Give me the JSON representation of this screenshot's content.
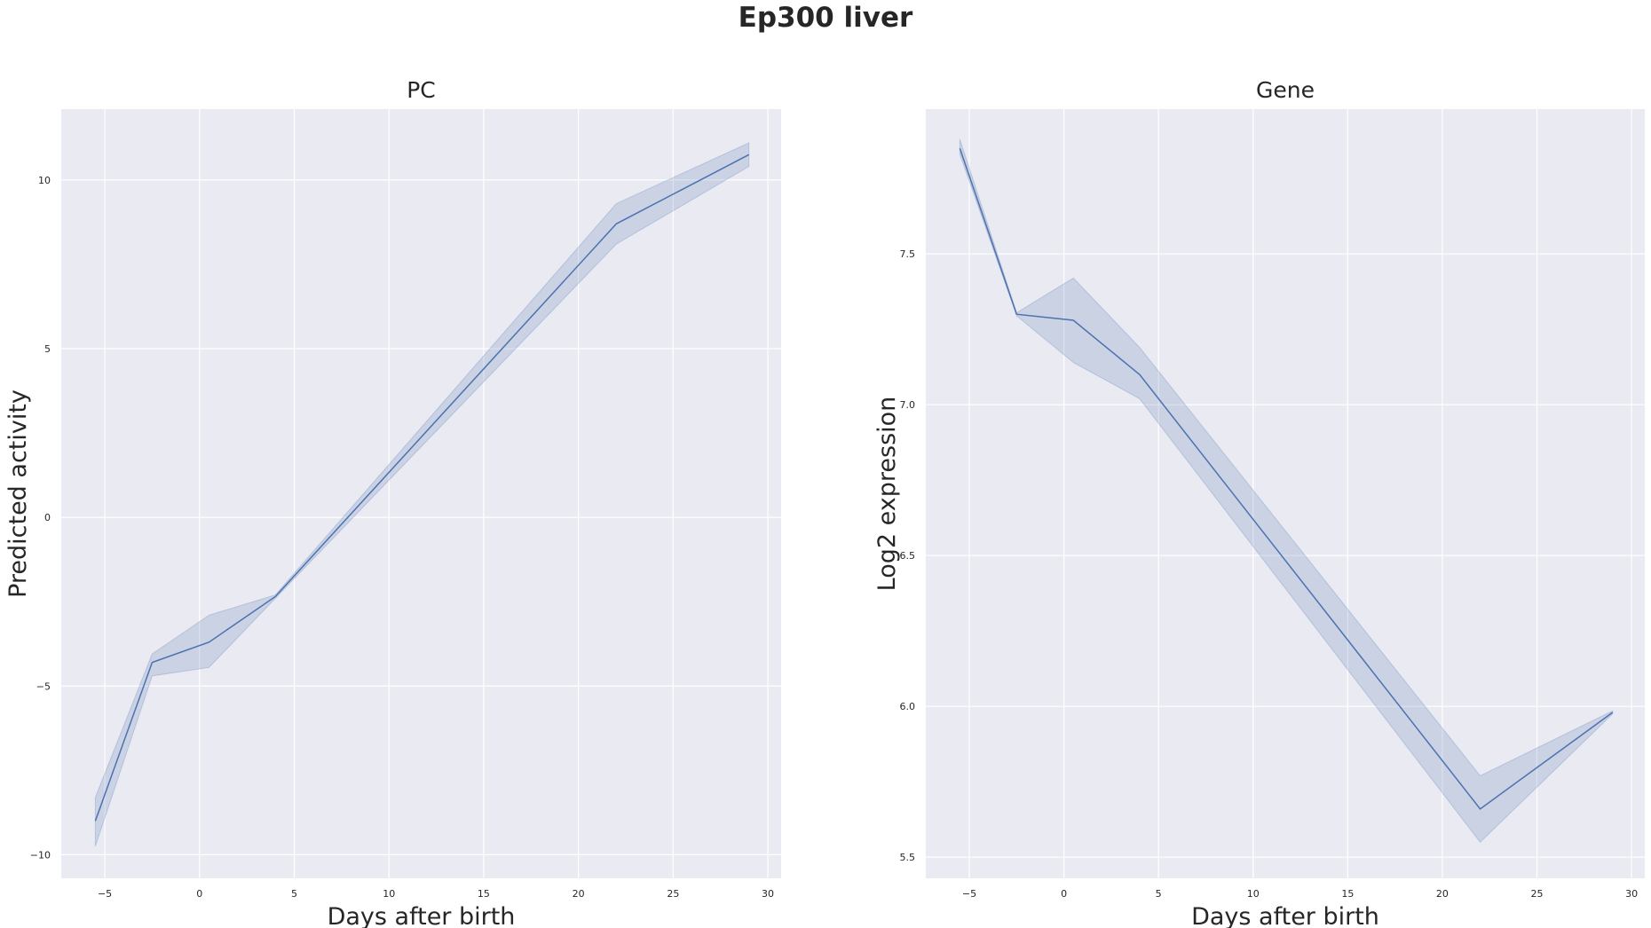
{
  "figure": {
    "title": "Ep300 liver"
  },
  "chart_data": [
    {
      "type": "line",
      "title": "PC",
      "xlabel": "Days after birth",
      "ylabel": "Predicted activity",
      "xlim": [
        -7.3,
        30.7
      ],
      "ylim": [
        -10.7,
        12.1
      ],
      "xticks": [
        -5,
        0,
        5,
        10,
        15,
        20,
        25,
        30
      ],
      "yticks": [
        -10,
        -5,
        0,
        5,
        10
      ],
      "grid": true,
      "color": "#4c72b0",
      "series": [
        {
          "x": [
            -5.5,
            -2.5,
            0.5,
            4,
            22,
            29
          ],
          "y": [
            -9.0,
            -4.3,
            -3.7,
            -2.35,
            8.7,
            10.75
          ],
          "ci_low": [
            -9.75,
            -4.7,
            -4.45,
            -2.4,
            8.1,
            10.4
          ],
          "ci_high": [
            -8.3,
            -4.05,
            -2.9,
            -2.3,
            9.3,
            11.1
          ]
        }
      ]
    },
    {
      "type": "line",
      "title": "Gene",
      "xlabel": "Days after birth",
      "ylabel": "Log2 expression",
      "xlim": [
        -7.3,
        30.7
      ],
      "ylim": [
        5.43,
        7.98
      ],
      "xticks": [
        -5,
        0,
        5,
        10,
        15,
        20,
        25,
        30
      ],
      "yticks": [
        5.5,
        6.0,
        6.5,
        7.0,
        7.5
      ],
      "grid": true,
      "color": "#4c72b0",
      "series": [
        {
          "x": [
            -5.5,
            -2.5,
            0.5,
            4,
            22,
            29
          ],
          "y": [
            7.85,
            7.3,
            7.28,
            7.1,
            5.66,
            5.98
          ],
          "ci_low": [
            7.83,
            7.295,
            7.14,
            7.02,
            5.55,
            5.975
          ],
          "ci_high": [
            7.88,
            7.305,
            7.42,
            7.19,
            5.77,
            5.985
          ]
        }
      ]
    }
  ]
}
